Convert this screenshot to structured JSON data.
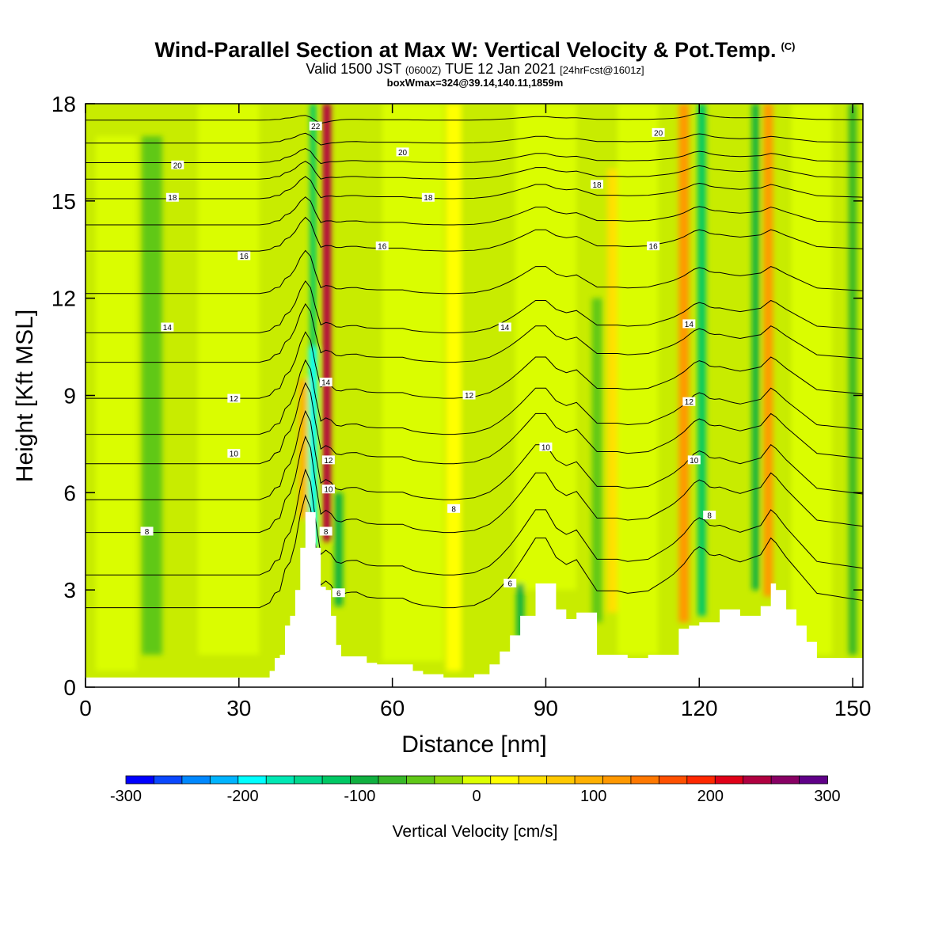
{
  "header": {
    "title": "Wind-Parallel Section at Max W: Vertical Velocity & Pot.Temp.",
    "copyright": "(C)",
    "valid_prefix": "Valid 1500 JST",
    "valid_zulu": "(0600Z)",
    "valid_date": "TUE 12 Jan 2021",
    "forecast": "[24hrFcst@1601z]",
    "boxinfo": "boxWmax=324@39.14,140.11,1859m"
  },
  "chart_data": {
    "type": "heatmap",
    "title": "Wind-Parallel Section at Max W: Vertical Velocity & Pot.Temp.",
    "xlabel": "Distance [nm]",
    "ylabel": "Height [Kft MSL]",
    "xlim": [
      0,
      152
    ],
    "ylim": [
      0,
      18
    ],
    "xticks": [
      0,
      30,
      60,
      90,
      120,
      150
    ],
    "xtick_labels": [
      "0",
      "30",
      "60",
      "90",
      "120",
      "150"
    ],
    "yticks": [
      0,
      3,
      6,
      9,
      12,
      15,
      18
    ],
    "ytick_labels": [
      "0",
      "3",
      "6",
      "9",
      "12",
      "15",
      "18"
    ],
    "colorbar": {
      "title": "Vertical Velocity [cm/s]",
      "range": [
        -300,
        300
      ],
      "step": 25,
      "tick_values": [
        -300,
        -200,
        -100,
        0,
        100,
        200,
        300
      ],
      "tick_labels": [
        "-300",
        "-200",
        "-100",
        "0",
        "100",
        "200",
        "300"
      ],
      "colors": [
        "#0000ff",
        "#0a48ff",
        "#0088ff",
        "#00b4ff",
        "#00ffff",
        "#00e8b4",
        "#00d88c",
        "#00c864",
        "#10b040",
        "#38b828",
        "#60c818",
        "#90d808",
        "#dcff00",
        "#ffff00",
        "#ffe000",
        "#ffc800",
        "#ffb000",
        "#ff9800",
        "#ff7800",
        "#ff5000",
        "#ff2800",
        "#e00018",
        "#b00040",
        "#880064",
        "#600088"
      ]
    },
    "terrain": {
      "x": [
        0,
        34,
        36,
        37,
        38,
        39,
        40,
        41,
        42,
        43,
        44,
        45,
        46,
        47,
        48,
        49,
        50,
        53,
        55,
        57,
        62,
        64,
        66,
        70,
        72,
        76,
        79,
        81,
        83,
        85,
        88,
        90,
        92,
        94,
        96,
        100,
        104,
        106,
        110,
        116,
        118,
        120,
        122,
        124,
        125,
        128,
        132,
        134,
        135,
        137,
        139,
        141,
        143,
        152
      ],
      "y": [
        0.3,
        0.3,
        0.5,
        0.9,
        1.0,
        1.9,
        2.2,
        3.0,
        4.3,
        5.4,
        5.4,
        4.3,
        3.1,
        3.0,
        2.2,
        1.3,
        0.95,
        0.95,
        0.75,
        0.7,
        0.7,
        0.5,
        0.4,
        0.3,
        0.3,
        0.4,
        0.7,
        1.1,
        1.6,
        2.2,
        3.2,
        3.2,
        2.4,
        2.1,
        2.3,
        1.0,
        1.0,
        0.9,
        1.0,
        1.8,
        1.9,
        2.0,
        2.0,
        2.4,
        2.4,
        2.2,
        2.5,
        3.2,
        3.0,
        2.4,
        1.9,
        1.4,
        0.9,
        0.6
      ]
    },
    "w_field_description": "Vertical velocity shaded; strong updraft (~+300) and downdraft (~-200) couplet near x=45-48; secondary up/down bands near x=72, 103, 117-121, 133-136.",
    "w_features": [
      {
        "x": 44.5,
        "z0": 4.3,
        "z1": 10.5,
        "value": -200,
        "width": 1.6
      },
      {
        "x": 44.5,
        "z0": 10.5,
        "z1": 18,
        "value": -110,
        "width": 1.2
      },
      {
        "x": 47.2,
        "z0": 4.5,
        "z1": 18,
        "value": 260,
        "width": 1.6
      },
      {
        "x": 42.5,
        "z0": 5.2,
        "z1": 9.5,
        "value": 120,
        "width": 1.4
      },
      {
        "x": 49.5,
        "z0": 2.5,
        "z1": 6,
        "value": -80,
        "width": 1.6
      },
      {
        "x": 117,
        "z0": 2,
        "z1": 18,
        "value": 140,
        "width": 2.0
      },
      {
        "x": 120.5,
        "z0": 2.2,
        "z1": 18,
        "value": -110,
        "width": 1.6
      },
      {
        "x": 133.5,
        "z0": 2.8,
        "z1": 18,
        "value": 130,
        "width": 1.8
      },
      {
        "x": 131.0,
        "z0": 3.0,
        "z1": 18,
        "value": -90,
        "width": 1.4
      },
      {
        "x": 103,
        "z0": 2.3,
        "z1": 16,
        "value": 60,
        "width": 2.0
      },
      {
        "x": 100,
        "z0": 2.0,
        "z1": 12,
        "value": -50,
        "width": 2.0
      },
      {
        "x": 72,
        "z0": 0.5,
        "z1": 18,
        "value": 40,
        "width": 3.0
      },
      {
        "x": 85,
        "z0": 1.5,
        "z1": 3.2,
        "value": -100,
        "width": 1.5
      },
      {
        "x": 13,
        "z0": 1,
        "z1": 17,
        "value": -40,
        "width": 4.0
      },
      {
        "x": 150,
        "z0": 1,
        "z1": 18,
        "value": -60,
        "width": 1.6
      }
    ],
    "theta_contours": [
      {
        "level": "6",
        "base": 2.6
      },
      {
        "level": "",
        "base": 3.6
      },
      {
        "level": "8",
        "base": 4.9
      },
      {
        "level": "",
        "base": 5.9
      },
      {
        "level": "10",
        "base": 7.0
      },
      {
        "level": "",
        "base": 7.9
      },
      {
        "level": "12",
        "base": 9.0
      },
      {
        "level": "",
        "base": 10.1
      },
      {
        "level": "14",
        "base": 11.0
      },
      {
        "level": "",
        "base": 12.2
      },
      {
        "level": "16",
        "base": 13.5
      },
      {
        "level": "",
        "base": 14.3
      },
      {
        "level": "18",
        "base": 15.1
      },
      {
        "level": "",
        "base": 15.7
      },
      {
        "level": "20",
        "base": 16.2
      },
      {
        "level": "",
        "base": 16.8
      },
      {
        "level": "22",
        "base": 17.5
      }
    ],
    "contour_labels": [
      {
        "text": "8",
        "x": 12,
        "y": 4.8
      },
      {
        "text": "10",
        "x": 29,
        "y": 7.2
      },
      {
        "text": "12",
        "x": 29,
        "y": 8.9
      },
      {
        "text": "14",
        "x": 16,
        "y": 11.1
      },
      {
        "text": "16",
        "x": 31,
        "y": 13.3
      },
      {
        "text": "18",
        "x": 17,
        "y": 15.1
      },
      {
        "text": "20",
        "x": 18,
        "y": 16.1
      },
      {
        "text": "22",
        "x": 45,
        "y": 17.3
      },
      {
        "text": "20",
        "x": 62,
        "y": 16.5
      },
      {
        "text": "18",
        "x": 67,
        "y": 15.1
      },
      {
        "text": "16",
        "x": 58,
        "y": 13.6
      },
      {
        "text": "14",
        "x": 47,
        "y": 9.4
      },
      {
        "text": "12",
        "x": 47.5,
        "y": 7.0
      },
      {
        "text": "10",
        "x": 47.5,
        "y": 6.1
      },
      {
        "text": "8",
        "x": 47,
        "y": 4.8
      },
      {
        "text": "6",
        "x": 49.5,
        "y": 2.9
      },
      {
        "text": "14",
        "x": 82,
        "y": 11.1
      },
      {
        "text": "12",
        "x": 75,
        "y": 9.0
      },
      {
        "text": "10",
        "x": 90,
        "y": 7.4
      },
      {
        "text": "8",
        "x": 72,
        "y": 5.5
      },
      {
        "text": "6",
        "x": 83,
        "y": 3.2
      },
      {
        "text": "18",
        "x": 100,
        "y": 15.5
      },
      {
        "text": "20",
        "x": 112,
        "y": 17.1
      },
      {
        "text": "16",
        "x": 111,
        "y": 13.6
      },
      {
        "text": "14",
        "x": 118,
        "y": 11.2
      },
      {
        "text": "12",
        "x": 118,
        "y": 8.8
      },
      {
        "text": "10",
        "x": 119,
        "y": 7.0
      },
      {
        "text": "8",
        "x": 122,
        "y": 5.3
      }
    ]
  }
}
